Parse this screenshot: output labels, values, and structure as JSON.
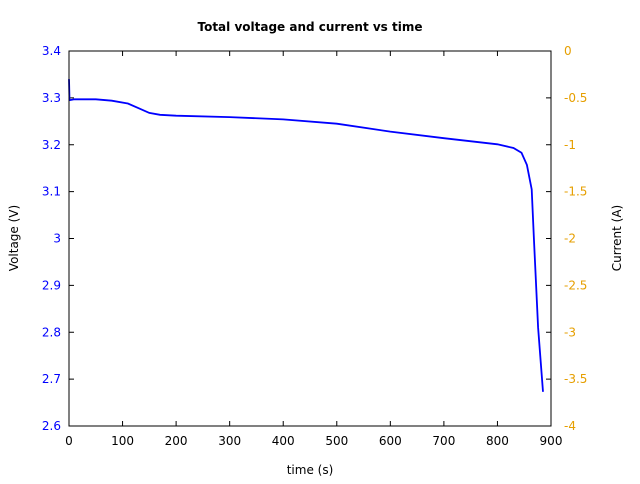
{
  "chart_data": {
    "type": "line",
    "title": "Total voltage and current vs time",
    "xlabel": "time (s)",
    "ylabel": "Voltage (V)",
    "y2label": "Current (A)",
    "xlim": [
      0,
      900
    ],
    "ylim": [
      2.6,
      3.4
    ],
    "y2lim": [
      -4,
      0
    ],
    "xticks": [
      "0",
      "100",
      "200",
      "300",
      "400",
      "500",
      "600",
      "700",
      "800",
      "900"
    ],
    "yticks": [
      "2.6",
      "2.7",
      "2.8",
      "2.9",
      "3",
      "3.1",
      "3.2",
      "3.3",
      "3.4"
    ],
    "y2ticks": [
      "-4",
      "-3.5",
      "-3",
      "-2.5",
      "-2",
      "-1.5",
      "-1",
      "-0.5",
      "0"
    ],
    "grid": false,
    "colors": {
      "voltage": "#0000ff",
      "current_axis": "#e69f00",
      "axis": "#000000"
    },
    "series": [
      {
        "axis": "left",
        "color": "#0000ff",
        "x": [
          0,
          1,
          10,
          50,
          80,
          110,
          130,
          150,
          170,
          200,
          300,
          400,
          500,
          600,
          700,
          800,
          830,
          845,
          855,
          864,
          868,
          876,
          885
        ],
        "y": [
          3.34,
          3.295,
          3.297,
          3.297,
          3.294,
          3.288,
          3.278,
          3.268,
          3.264,
          3.262,
          3.259,
          3.254,
          3.245,
          3.228,
          3.214,
          3.201,
          3.193,
          3.183,
          3.157,
          3.105,
          3.0,
          2.81,
          2.673
        ]
      }
    ]
  }
}
